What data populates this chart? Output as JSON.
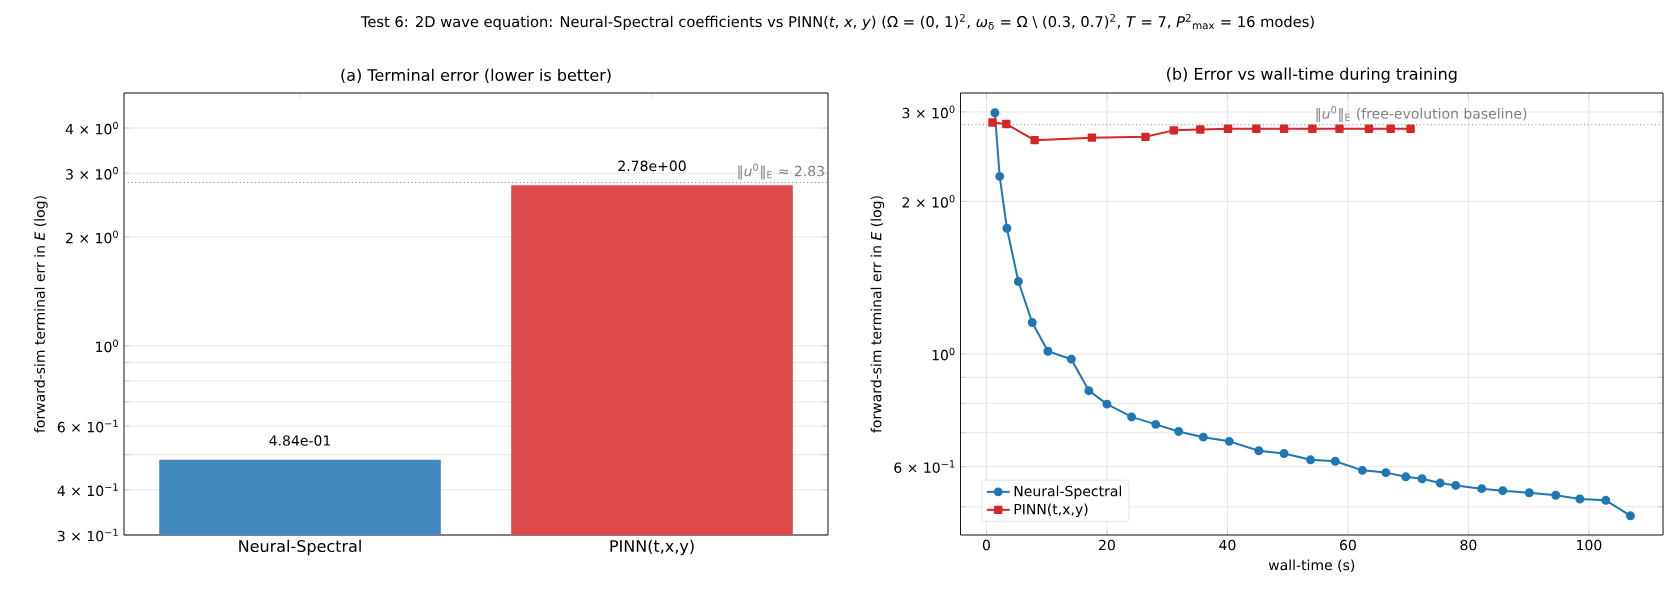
{
  "chart_data": [
    {
      "type": "bar",
      "title": "(a) Terminal error  (lower is better)",
      "ylabel": "forward-sim terminal err in *E*  (log)",
      "annotations": [
        "Test 6: 2D wave equation: Neural-Spectral coefficients vs PINN(*t*, *x*, *y*)  (Ω = (0, 1)$^{2}$, *ω*$_{δ}$ = Ω \\ (0.3, 0.7)$^{2}$, *T* = 7, *P*$^{2}$$_{max}$ = 16 modes)"
      ],
      "categories": [
        "Neural-Spectral",
        "PINN(t,x,y)"
      ],
      "values": [
        0.484,
        2.78
      ],
      "colors": [
        "#4289c0",
        "#dc4a4a"
      ],
      "value_labels": [
        "4.84e-01",
        "2.78e+00"
      ],
      "log": true,
      "ylim": [
        0.3,
        5
      ],
      "yticks": [
        {
          "value": 0.3,
          "label": "3 × 10$^{−1}$"
        },
        {
          "value": 0.4,
          "label": "4 × 10$^{−1}$"
        },
        {
          "value": 0.5,
          "label": null
        },
        {
          "value": 0.6,
          "label": "6 × 10$^{−1}$"
        },
        {
          "value": 0.7,
          "label": null
        },
        {
          "value": 0.8,
          "label": null
        },
        {
          "value": 0.9,
          "label": null
        },
        {
          "value": 1,
          "label": "10$^{0}$"
        },
        {
          "value": 2,
          "label": "2 × 10$^{0}$"
        },
        {
          "value": 3,
          "label": "3 × 10$^{0}$"
        },
        {
          "value": 4,
          "label": "4 × 10$^{0}$"
        }
      ],
      "grid": "y",
      "ref_lines": [
        {
          "axis": "y",
          "value": 2.83,
          "label": "‖*u*$^{0}$‖$_{E}$ ≈ 2.83",
          "color": "#808080",
          "line_style": "dotted"
        }
      ]
    },
    {
      "type": "line",
      "title": "(b) Error vs wall-time during training",
      "xlabel": "wall-time (s)",
      "ylabel": "forward-sim terminal err in *E* (log)",
      "log": true,
      "xlim": [
        -4.3,
        112.3
      ],
      "xticks": [
        0,
        20,
        40,
        60,
        80,
        100
      ],
      "ylim": [
        0.44,
        3.27
      ],
      "yticks": [
        {
          "value": 0.5,
          "label": null
        },
        {
          "value": 0.6,
          "label": "6 × 10$^{−1}$"
        },
        {
          "value": 0.7,
          "label": null
        },
        {
          "value": 0.8,
          "label": null
        },
        {
          "value": 0.9,
          "label": null
        },
        {
          "value": 1,
          "label": "10$^{0}$"
        },
        {
          "value": 2,
          "label": "2 × 10$^{0}$"
        },
        {
          "value": 3,
          "label": "3 × 10$^{0}$"
        }
      ],
      "grid": true,
      "legend": "bottom left",
      "line_style": "solid",
      "series": [
        {
          "name": "Neural-Spectral",
          "color": "#1f77b4",
          "marker": "circle",
          "x": [
            1.4,
            2.2,
            3.4,
            5.3,
            7.6,
            10.2,
            14.1,
            17.0,
            20.0,
            24.1,
            28.1,
            31.9,
            36.0,
            40.3,
            45.2,
            49.4,
            53.8,
            57.9,
            62.4,
            66.3,
            69.6,
            72.3,
            75.3,
            77.9,
            82.2,
            85.7,
            90.1,
            94.5,
            98.5,
            102.8,
            106.9
          ],
          "values": [
            2.99,
            2.24,
            1.77,
            1.39,
            1.154,
            1.013,
            0.977,
            0.847,
            0.797,
            0.752,
            0.727,
            0.704,
            0.686,
            0.673,
            0.645,
            0.637,
            0.619,
            0.615,
            0.59,
            0.584,
            0.573,
            0.568,
            0.557,
            0.551,
            0.543,
            0.538,
            0.533,
            0.527,
            0.518,
            0.515,
            0.48
          ]
        },
        {
          "name": "PINN(t,x,y)",
          "color": "#d62728",
          "marker": "square",
          "x": [
            1.0,
            3.3,
            8.0,
            17.5,
            26.4,
            31.1,
            35.5,
            40.1,
            44.8,
            49.4,
            54.1,
            58.6,
            63.5,
            67.1,
            70.4
          ],
          "values": [
            2.86,
            2.84,
            2.64,
            2.67,
            2.68,
            2.76,
            2.77,
            2.78,
            2.78,
            2.78,
            2.78,
            2.78,
            2.78,
            2.78,
            2.78
          ]
        }
      ],
      "ref_lines": [
        {
          "axis": "y",
          "value": 2.83,
          "label": "‖*u*$^{0}$‖$_{E}$  (free-evolution baseline)",
          "color": "#808080",
          "line_style": "dotted"
        }
      ]
    }
  ]
}
